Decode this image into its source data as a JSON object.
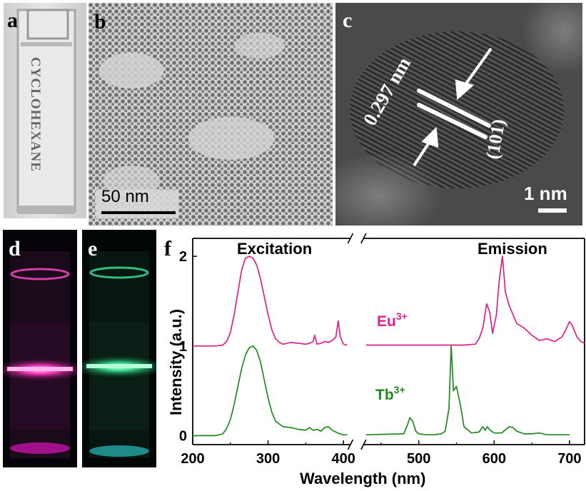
{
  "panels": {
    "a": {
      "label": "a",
      "cuvette_text": "CYCLOHEXANE"
    },
    "b": {
      "label": "b",
      "scalebar": "50 nm"
    },
    "c": {
      "label": "c",
      "spacing": "0.297 nm",
      "plane": "(101)",
      "scalebar": "1 nm"
    },
    "d": {
      "label": "d"
    },
    "e": {
      "label": "e"
    },
    "f": {
      "label": "f"
    }
  },
  "colors": {
    "eu": "#e0208a",
    "tb": "#1f8a1f",
    "axis": "#000000"
  },
  "chart_data": {
    "type": "line",
    "title": "",
    "xlabel": "Wavelength (nm)",
    "ylabel": "Intensity (a.u.)",
    "x_ticks": [
      200,
      300,
      400,
      500,
      600,
      700
    ],
    "y_ticks": [
      0,
      1,
      2
    ],
    "xlim": [
      200,
      720
    ],
    "x_break": [
      405,
      430
    ],
    "ylim": [
      -0.1,
      2.2
    ],
    "annotations": {
      "excitation": "Excitation",
      "emission": "Emission"
    },
    "series": [
      {
        "name": "Eu3+",
        "label_base": "Eu",
        "label_sup": "3+",
        "offset": 1,
        "x": [
          200,
          230,
          240,
          245,
          250,
          255,
          260,
          265,
          270,
          275,
          280,
          285,
          290,
          295,
          300,
          305,
          310,
          315,
          320,
          330,
          340,
          350,
          355,
          360,
          362,
          365,
          370,
          375,
          380,
          385,
          390,
          393,
          396,
          400,
          405,
          430,
          475,
          480,
          485,
          490,
          495,
          500,
          510,
          520,
          530,
          540,
          560,
          575,
          580,
          585,
          590,
          594,
          598,
          603,
          607,
          611,
          615,
          620,
          625,
          630,
          640,
          650,
          660,
          670,
          680,
          690,
          695,
          700,
          703,
          706,
          710,
          715,
          720
        ],
        "y": [
          0,
          0,
          0.01,
          0.05,
          0.15,
          0.35,
          0.6,
          0.85,
          0.98,
          1.0,
          0.98,
          0.9,
          0.75,
          0.55,
          0.35,
          0.18,
          0.08,
          0.04,
          0.02,
          0.04,
          0.03,
          0.02,
          0.03,
          0.05,
          0.12,
          0.02,
          0.03,
          0.05,
          0.04,
          0.06,
          0.1,
          0.28,
          0.1,
          0.02,
          0.01,
          0.01,
          0.01,
          0.01,
          0.01,
          0.01,
          0.01,
          0.01,
          0.01,
          0.01,
          0.01,
          0.01,
          0.01,
          0.02,
          0.08,
          0.2,
          0.47,
          0.38,
          0.14,
          0.35,
          0.75,
          1.0,
          0.6,
          0.45,
          0.35,
          0.25,
          0.2,
          0.12,
          0.06,
          0.08,
          0.05,
          0.1,
          0.18,
          0.27,
          0.24,
          0.18,
          0.1,
          0.05,
          0.03
        ]
      },
      {
        "name": "Tb3+",
        "label_base": "Tb",
        "label_sup": "3+",
        "offset": 0,
        "x": [
          200,
          230,
          240,
          245,
          250,
          255,
          260,
          265,
          270,
          275,
          280,
          285,
          290,
          295,
          300,
          305,
          310,
          320,
          330,
          340,
          350,
          355,
          360,
          365,
          370,
          375,
          380,
          385,
          390,
          395,
          400,
          405,
          430,
          480,
          485,
          488,
          492,
          496,
          500,
          510,
          520,
          530,
          535,
          540,
          543,
          546,
          550,
          555,
          560,
          570,
          580,
          585,
          588,
          591,
          595,
          600,
          610,
          620,
          625,
          630,
          640,
          650,
          660,
          670,
          680,
          690,
          700
        ],
        "y": [
          0,
          0,
          0.02,
          0.08,
          0.18,
          0.35,
          0.55,
          0.75,
          0.9,
          0.98,
          1.0,
          0.95,
          0.82,
          0.62,
          0.42,
          0.26,
          0.16,
          0.1,
          0.09,
          0.07,
          0.06,
          0.09,
          0.06,
          0.07,
          0.05,
          0.09,
          0.1,
          0.06,
          0.04,
          0.02,
          0.01,
          0.01,
          0.01,
          0.02,
          0.12,
          0.2,
          0.16,
          0.05,
          0.02,
          0.01,
          0.01,
          0.02,
          0.05,
          0.3,
          1.0,
          0.5,
          0.55,
          0.35,
          0.1,
          0.03,
          0.04,
          0.1,
          0.06,
          0.1,
          0.06,
          0.03,
          0.03,
          0.1,
          0.09,
          0.05,
          0.02,
          0.02,
          0.03,
          0.01,
          0.01,
          0.01,
          0.01
        ]
      }
    ]
  }
}
